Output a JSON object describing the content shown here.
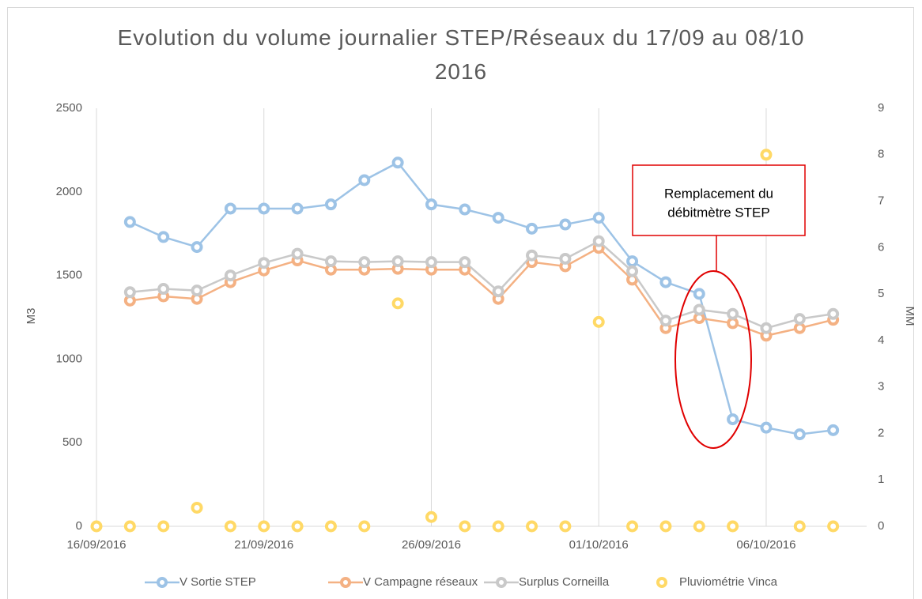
{
  "chart_data": {
    "type": "line",
    "title": "Evolution du volume journalier STEP/Réseaux du 17/09 au 08/10 2016",
    "y_label": "M3",
    "y2_label": "MM",
    "x": [
      "2016-09-16",
      "2016-09-17",
      "2016-09-18",
      "2016-09-19",
      "2016-09-20",
      "2016-09-21",
      "2016-09-22",
      "2016-09-23",
      "2016-09-24",
      "2016-09-25",
      "2016-09-26",
      "2016-09-27",
      "2016-09-28",
      "2016-09-29",
      "2016-09-30",
      "2016-10-01",
      "2016-10-02",
      "2016-10-03",
      "2016-10-04",
      "2016-10-05",
      "2016-10-06",
      "2016-10-07",
      "2016-10-08"
    ],
    "xlim": [
      "2016-09-16",
      "2016-10-09"
    ],
    "xticks": [
      {
        "value": "2016-09-16",
        "label": "16/09/2016"
      },
      {
        "value": "2016-09-21",
        "label": "21/09/2016"
      },
      {
        "value": "2016-09-26",
        "label": "26/09/2016"
      },
      {
        "value": "2016-10-01",
        "label": "01/10/2016"
      },
      {
        "value": "2016-10-06",
        "label": "06/10/2016"
      }
    ],
    "ylim": [
      0,
      2500
    ],
    "yticks": [
      0,
      500,
      1000,
      1500,
      2000,
      2500
    ],
    "y2lim": [
      0,
      9
    ],
    "y2ticks": [
      0,
      1,
      2,
      3,
      4,
      5,
      6,
      7,
      8,
      9
    ],
    "grid": "x",
    "series": [
      {
        "name": "V Sortie STEP",
        "color": "#9dc3e6",
        "values": [
          null,
          1820,
          1730,
          1670,
          1900,
          1900,
          1900,
          1925,
          2070,
          2175,
          1925,
          1895,
          1845,
          1780,
          1805,
          1845,
          1585,
          1460,
          1390,
          640,
          590,
          550,
          575
        ]
      },
      {
        "name": "V Campagne réseaux",
        "color": "#f4b183",
        "values": [
          null,
          1350,
          1375,
          1360,
          1460,
          1530,
          1590,
          1535,
          1535,
          1540,
          1535,
          1535,
          1360,
          1580,
          1555,
          1665,
          1475,
          1185,
          1245,
          1215,
          1140,
          1185,
          1235
        ]
      },
      {
        "name": "Surplus Corneilla",
        "color": "#c9c9c9",
        "values": [
          null,
          1400,
          1420,
          1410,
          1500,
          1575,
          1630,
          1585,
          1580,
          1585,
          1580,
          1580,
          1405,
          1620,
          1600,
          1705,
          1525,
          1230,
          1295,
          1270,
          1185,
          1240,
          1270
        ]
      },
      {
        "name": "Pluviométrie Vinca",
        "color": "#ffd966",
        "axis": "y2",
        "line": false,
        "values": [
          0,
          0,
          0,
          0.4,
          0,
          0,
          0,
          0,
          0,
          4.8,
          0.2,
          0,
          0,
          0,
          0,
          4.4,
          0,
          0,
          0,
          0,
          8,
          0,
          0
        ]
      }
    ],
    "legend": "bottom",
    "annotation": {
      "text": [
        "Remplacement du",
        "débitmètre STEP"
      ],
      "color": "#e00000"
    }
  }
}
